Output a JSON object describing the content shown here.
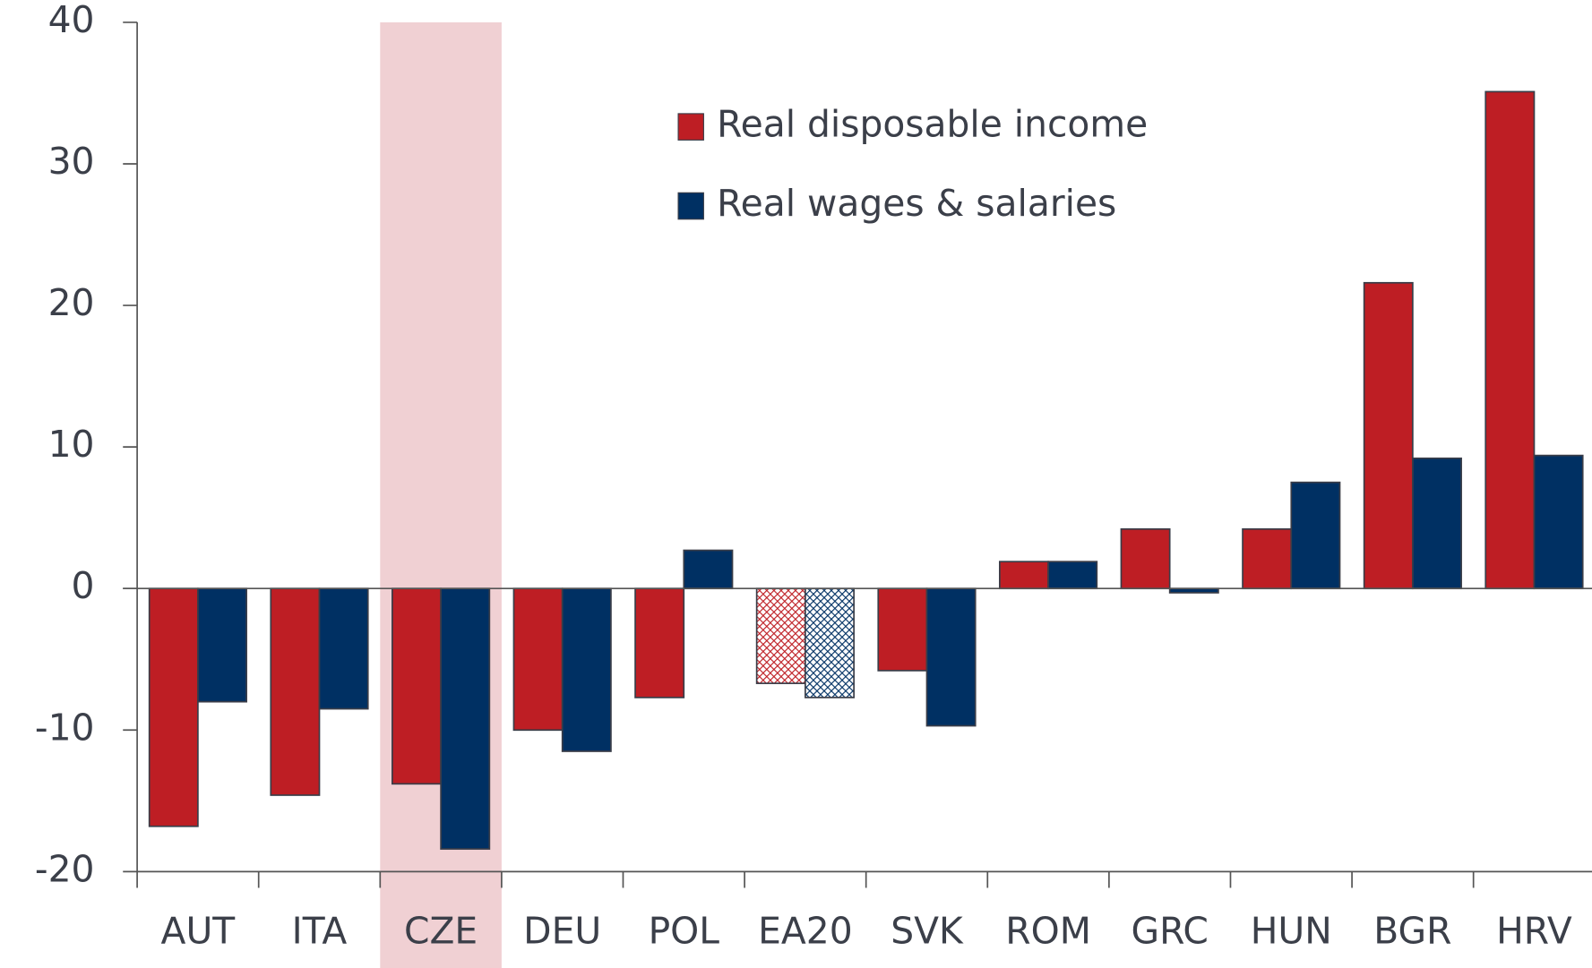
{
  "chart_data": {
    "type": "bar",
    "categories": [
      "AUT",
      "ITA",
      "CZE",
      "DEU",
      "POL",
      "EA20",
      "SVK",
      "ROM",
      "GRC",
      "HUN",
      "BGR",
      "HRV"
    ],
    "series": [
      {
        "name": "Real disposable income",
        "color": "#be1e24",
        "values": [
          -16.8,
          -14.6,
          -13.8,
          -10.0,
          -7.7,
          -6.7,
          -5.8,
          1.9,
          4.2,
          4.2,
          21.6,
          35.1
        ]
      },
      {
        "name": "Real wages & salaries",
        "color": "#003063",
        "values": [
          -8.0,
          -8.5,
          -18.4,
          -11.5,
          2.7,
          -7.7,
          -9.7,
          1.9,
          -0.3,
          7.5,
          9.2,
          9.4
        ]
      }
    ],
    "ylim": [
      -20,
      40
    ],
    "yticks": [
      -20,
      -10,
      0,
      10,
      20,
      30,
      40
    ],
    "highlight": "CZE",
    "highlight_color": "#f0d0d3",
    "hatched": "EA20",
    "legend": "upper center"
  }
}
